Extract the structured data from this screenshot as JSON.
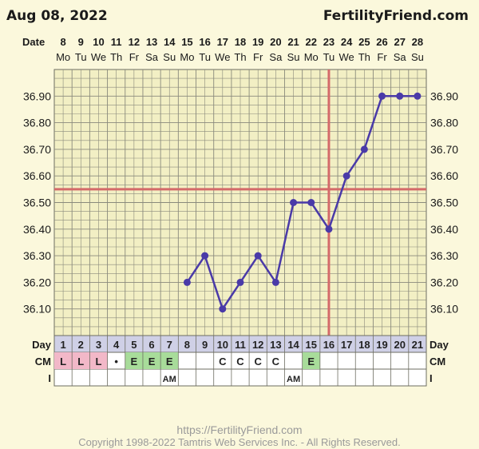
{
  "header": {
    "title": "Aug 08, 2022",
    "site": "FertilityFriend.com"
  },
  "row_labels": {
    "date": "Date",
    "day": "Day",
    "cm": "CM",
    "i": "I"
  },
  "chart_data": {
    "type": "line",
    "x_dates": [
      "8",
      "9",
      "10",
      "11",
      "12",
      "13",
      "14",
      "15",
      "16",
      "17",
      "18",
      "19",
      "20",
      "21",
      "22",
      "23",
      "24",
      "25",
      "26",
      "27",
      "28"
    ],
    "x_weekdays": [
      "Mo",
      "Tu",
      "We",
      "Th",
      "Fr",
      "Sa",
      "Su",
      "Mo",
      "Tu",
      "We",
      "Th",
      "Fr",
      "Sa",
      "Su",
      "Mo",
      "Tu",
      "We",
      "Th",
      "Fr",
      "Sa",
      "Su"
    ],
    "x_days": [
      "1",
      "2",
      "3",
      "4",
      "5",
      "6",
      "7",
      "8",
      "9",
      "10",
      "11",
      "12",
      "13",
      "14",
      "15",
      "16",
      "17",
      "18",
      "19",
      "20",
      "21"
    ],
    "ylim": [
      36.0,
      37.0
    ],
    "y_ticks": [
      "36.10",
      "36.20",
      "36.30",
      "36.40",
      "36.50",
      "36.60",
      "36.70",
      "36.80",
      "36.90"
    ],
    "series": [
      {
        "values": [
          null,
          null,
          null,
          null,
          null,
          null,
          null,
          36.2,
          36.3,
          36.1,
          36.2,
          36.3,
          36.2,
          36.5,
          36.5,
          36.4,
          36.6,
          36.7,
          36.9,
          36.9,
          36.9
        ],
        "color": "#4a3aa8"
      }
    ],
    "coverline": 36.55,
    "ovulation_day": 16,
    "coverline_color": "#d46a6a",
    "cm": [
      "L",
      "L",
      "L",
      "•",
      "E",
      "E",
      "E",
      "",
      "",
      "C",
      "C",
      "C",
      "C",
      "",
      "E",
      "",
      "",
      "",
      "",
      "",
      ""
    ],
    "cm_colors": {
      "L": "#f2b8c8",
      "E": "#a8dc9a"
    },
    "intercourse": [
      "",
      "",
      "",
      "",
      "",
      "",
      "AM",
      "",
      "",
      "",
      "",
      "",
      "",
      "AM",
      "",
      "",
      "",
      "",
      "",
      "",
      ""
    ]
  },
  "footer": {
    "url": "https://FertilityFriend.com",
    "copyright": "Copyright 1998-2022 Tamtris Web Services Inc. - All Rights Reserved."
  }
}
